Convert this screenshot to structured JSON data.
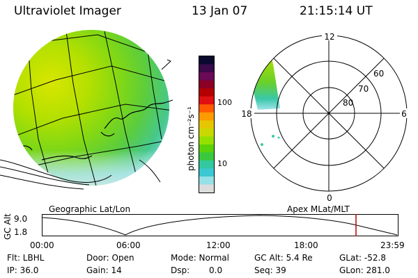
{
  "header": {
    "instrument": "Ultraviolet Imager",
    "date": "13 Jan 07",
    "time": "21:15:14 UT"
  },
  "colorbar": {
    "unit_label": "photon cm⁻²s⁻¹",
    "ticks": [
      "100",
      "10"
    ],
    "colors": [
      "#0a0a30",
      "#3a0a4a",
      "#6a0a58",
      "#8a0026",
      "#b40000",
      "#e01010",
      "#ff5a00",
      "#ff9a00",
      "#e6c600",
      "#c8d800",
      "#96e000",
      "#5ad20a",
      "#3ac840",
      "#32c8a0",
      "#3ac8d2",
      "#96e0e6",
      "#dcdcdc"
    ]
  },
  "left_panel": {
    "caption": "Geographic Lat/Lon"
  },
  "right_panel": {
    "caption": "Apex MLat/MLT",
    "mlt_labels": {
      "top": "12",
      "bottom": "0",
      "left": "18",
      "right": "6"
    },
    "lat_labels": [
      "60",
      "70",
      "80"
    ]
  },
  "timeline": {
    "y_axis_label": "GC Alt",
    "y_ticks": [
      "9.0",
      "1.8"
    ],
    "x_ticks": [
      "00:00",
      "06:00",
      "12:00",
      "18:00",
      "23:59"
    ],
    "current_marker_color": "#c00000"
  },
  "status": {
    "flt": "Flt: LBHL",
    "ip": "IP: 36.0",
    "door": "Door: Open",
    "gain": "Gain: 14",
    "mode": "Mode: Normal",
    "dsp": "Dsp:",
    "dsp_value": "0.0",
    "gc_alt": "GC Alt: 5.4 Re",
    "seq": "Seq: 39",
    "glat": "GLat: -52.8",
    "glon": "GLon: 281.0"
  }
}
